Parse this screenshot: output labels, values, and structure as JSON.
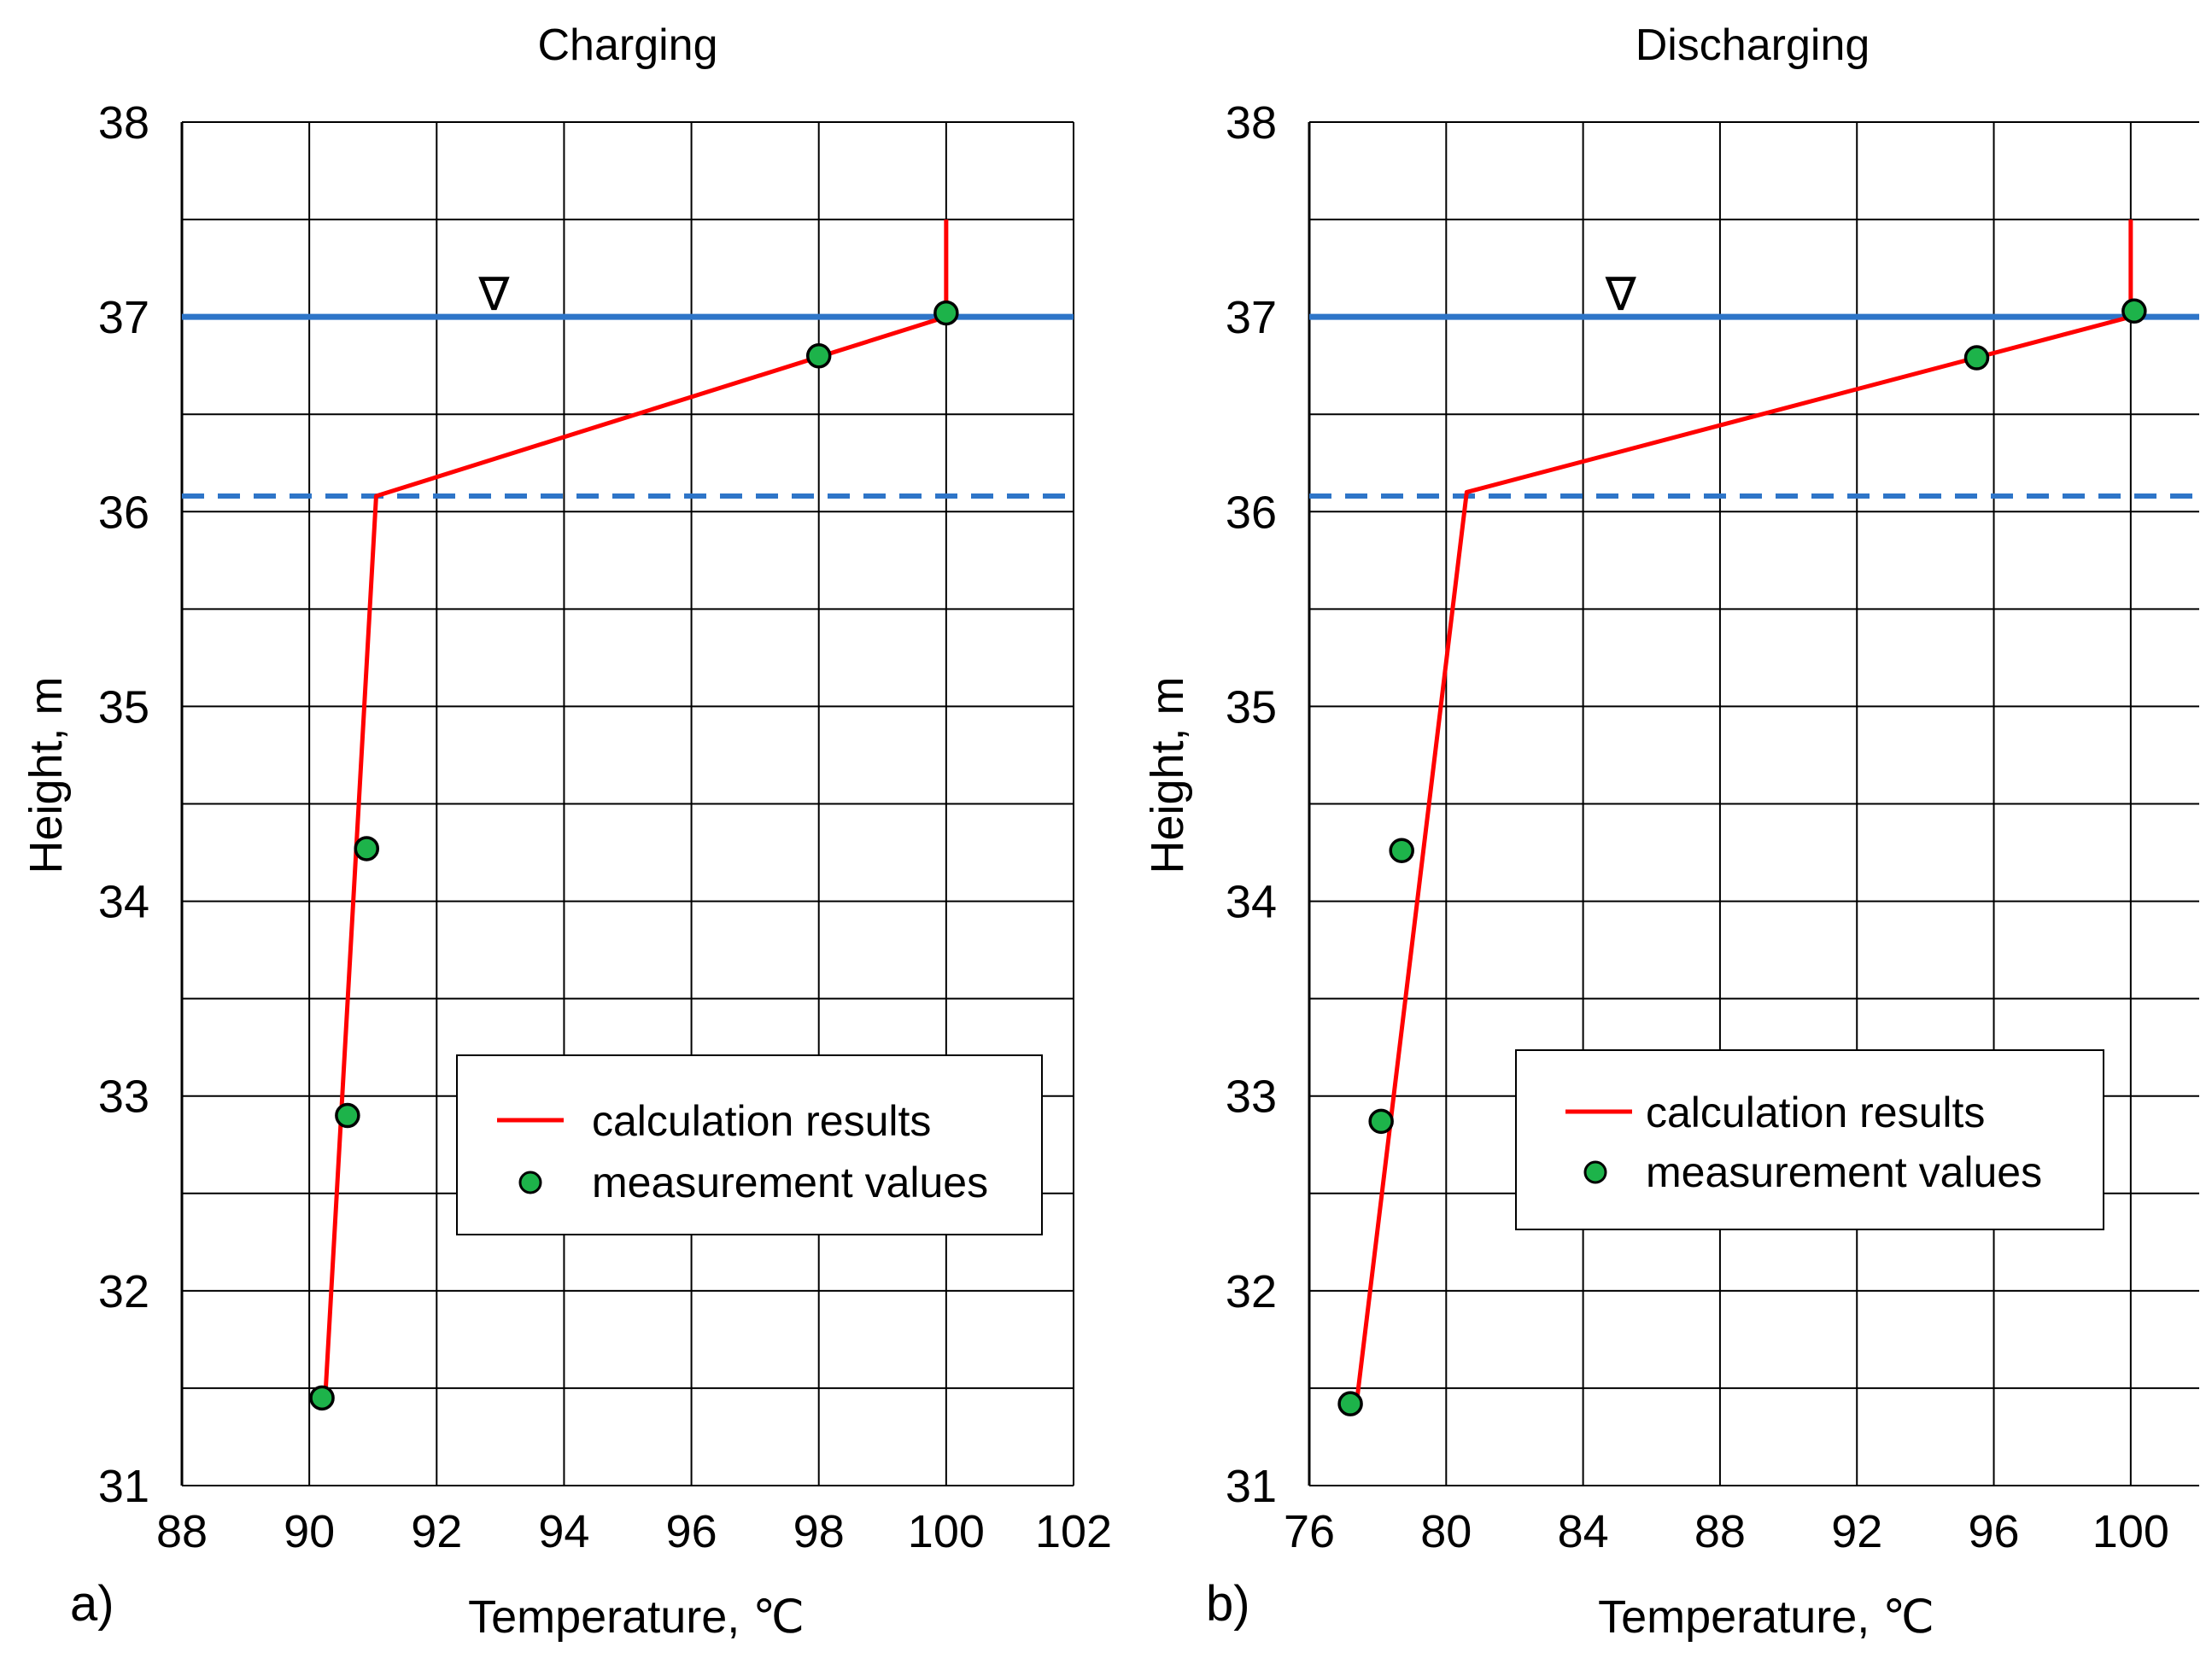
{
  "chart_data": [
    {
      "type": "line",
      "panel_label": "a)",
      "title": "Charging",
      "xlabel": "Temperature, ℃",
      "ylabel": "Height, m",
      "xlim": [
        88,
        102
      ],
      "ylim": [
        31,
        38
      ],
      "xticks": [
        88,
        90,
        92,
        94,
        96,
        98,
        100,
        102
      ],
      "yticks": [
        31,
        32,
        33,
        34,
        35,
        36,
        37,
        38
      ],
      "grid_x_step": 2,
      "grid_y_step": 0.5,
      "water_level": 37.0,
      "water_level_symbol": "∇",
      "water_level_symbol_x": 92.9,
      "thermocline_level": 36.08,
      "legend": {
        "position": "lower-right",
        "entries": [
          "calculation results",
          "measurement values"
        ]
      },
      "series": [
        {
          "name": "calculation results",
          "style": "line",
          "color": "#ff0000",
          "x": [
            90.25,
            91.05,
            100.0,
            100.0
          ],
          "y": [
            31.45,
            36.08,
            37.0,
            37.5
          ]
        },
        {
          "name": "measurement values",
          "style": "scatter",
          "color": "#1db34a",
          "x": [
            90.2,
            90.6,
            90.9,
            98.0,
            100.0
          ],
          "y": [
            31.45,
            32.9,
            34.27,
            36.8,
            37.02
          ]
        }
      ]
    },
    {
      "type": "line",
      "panel_label": "b)",
      "title": "Discharging",
      "xlabel": "Temperature, ℃",
      "ylabel": "Height, m",
      "xlim": [
        76,
        102
      ],
      "ylim": [
        31,
        38
      ],
      "xticks": [
        76,
        80,
        84,
        88,
        92,
        96,
        100
      ],
      "yticks": [
        31,
        32,
        33,
        34,
        35,
        36,
        37,
        38
      ],
      "grid_x_step": 4,
      "grid_y_step": 0.5,
      "water_level": 37.0,
      "water_level_symbol": "∇",
      "water_level_symbol_x": 85.1,
      "thermocline_level": 36.08,
      "legend": {
        "position": "lower-right",
        "entries": [
          "calculation results",
          "measurement values"
        ]
      },
      "series": [
        {
          "name": "calculation results",
          "style": "line",
          "color": "#ff0000",
          "x": [
            77.4,
            80.6,
            100.0,
            100.0
          ],
          "y": [
            31.45,
            36.1,
            37.0,
            37.5
          ]
        },
        {
          "name": "measurement values",
          "style": "scatter",
          "color": "#1db34a",
          "x": [
            77.2,
            78.1,
            78.7,
            95.5,
            100.1
          ],
          "y": [
            31.42,
            32.87,
            34.26,
            36.79,
            37.03
          ]
        }
      ]
    }
  ],
  "colors": {
    "water_level_line": "#2e75c8",
    "grid": "#000000"
  }
}
